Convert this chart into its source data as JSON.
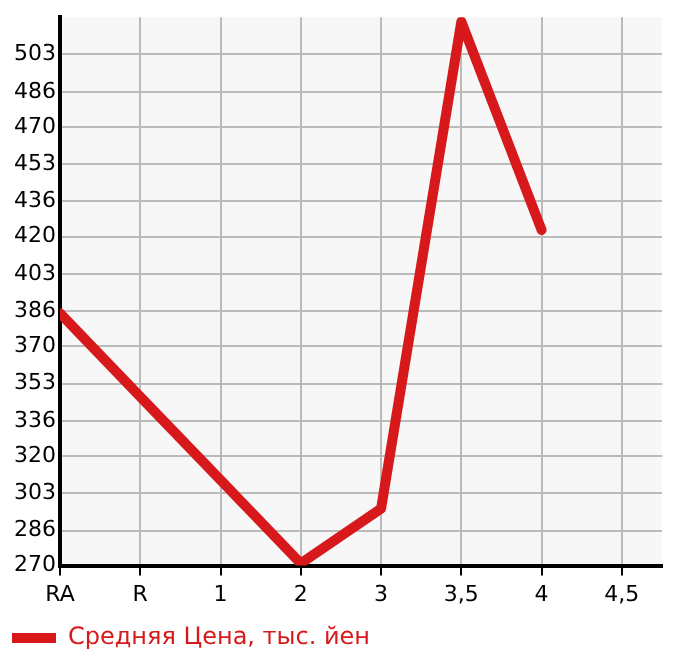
{
  "chart_data": {
    "type": "line",
    "categories": [
      "RA",
      "R",
      "1",
      "2",
      "3",
      "3,5",
      "4",
      "4,5"
    ],
    "series": [
      {
        "name": "Средняя Цена, тыс. йен",
        "color": "#d7191c",
        "values": [
          385,
          347,
          309,
          271,
          296,
          518,
          423,
          null
        ]
      }
    ],
    "ylim": [
      270,
      520
    ],
    "yticks": [
      270,
      286,
      303,
      320,
      336,
      353,
      370,
      386,
      403,
      420,
      436,
      453,
      470,
      486,
      503
    ],
    "grid": true,
    "legend": "bottom left",
    "marker": "none",
    "line_style": "solid"
  }
}
